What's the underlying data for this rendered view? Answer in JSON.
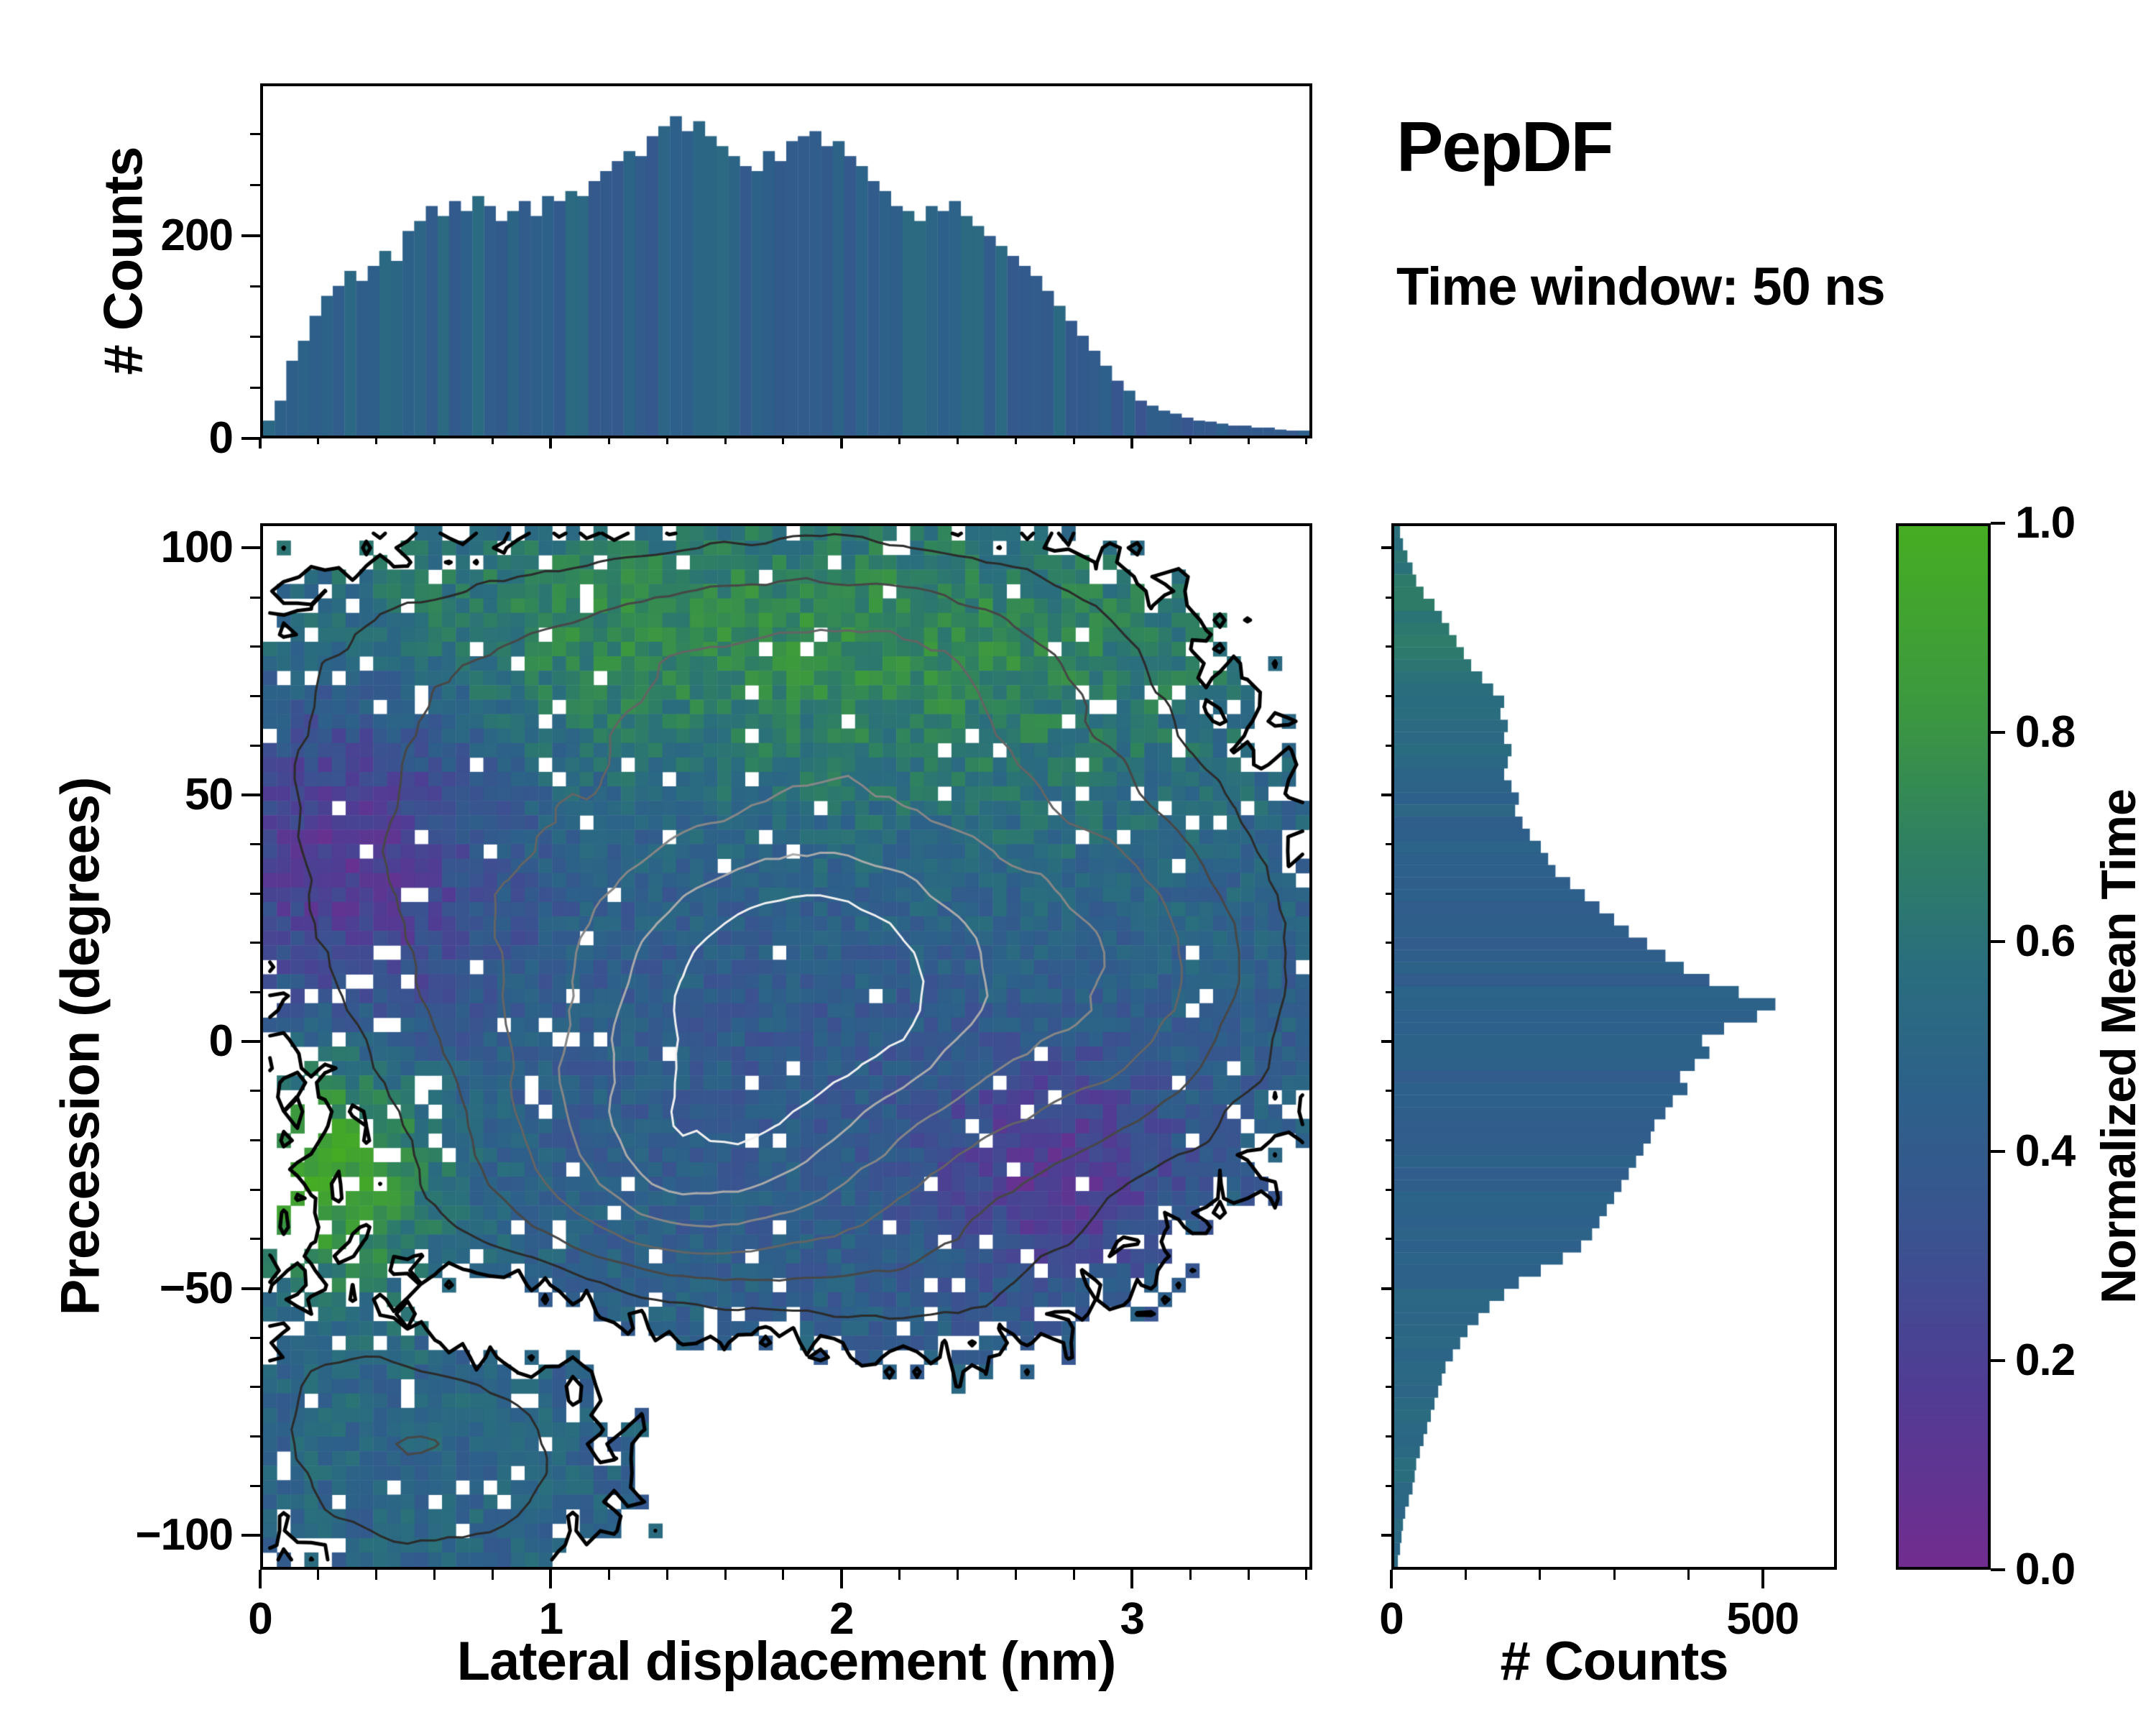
{
  "chart_data": {
    "type": "heatmap",
    "title": "PepDF",
    "annotation": "Time window: 50 ns",
    "main": {
      "xlabel": "Lateral displacement (nm)",
      "ylabel": "Precession (degrees)",
      "xlim": [
        0,
        3.62
      ],
      "ylim": [
        -107,
        105
      ],
      "xticks": [
        {
          "v": 0,
          "label": "0"
        },
        {
          "v": 1,
          "label": "1"
        },
        {
          "v": 2,
          "label": "2"
        },
        {
          "v": 3,
          "label": "3"
        }
      ],
      "xminor_step": 0.2,
      "yticks": [
        {
          "v": 100,
          "label": "100"
        },
        {
          "v": 50,
          "label": "50"
        },
        {
          "v": 0,
          "label": "0"
        },
        {
          "v": -50,
          "label": "−50"
        },
        {
          "v": -100,
          "label": "−100"
        }
      ],
      "yminor_step": 10
    },
    "top_hist": {
      "type": "bar",
      "ylabel": "# Counts",
      "ylim": [
        0,
        350
      ],
      "yticks": [
        {
          "v": 0,
          "label": "0"
        },
        {
          "v": 200,
          "label": "200"
        }
      ],
      "yminor_step": 50,
      "color_base": 0.46,
      "color_noise": 0.09,
      "values": [
        15,
        35,
        75,
        95,
        120,
        140,
        150,
        165,
        155,
        170,
        185,
        175,
        205,
        215,
        230,
        220,
        235,
        225,
        240,
        230,
        215,
        225,
        235,
        220,
        240,
        235,
        245,
        240,
        255,
        265,
        275,
        285,
        280,
        300,
        310,
        320,
        305,
        315,
        300,
        290,
        280,
        270,
        265,
        285,
        275,
        295,
        300,
        305,
        290,
        295,
        280,
        270,
        255,
        245,
        230,
        225,
        215,
        230,
        225,
        235,
        220,
        210,
        200,
        190,
        180,
        170,
        160,
        145,
        130,
        115,
        100,
        85,
        70,
        55,
        45,
        35,
        30,
        25,
        22,
        18,
        15,
        14,
        12,
        10,
        10,
        8,
        8,
        6,
        5,
        5
      ]
    },
    "right_hist": {
      "type": "bar",
      "orientation": "horizontal",
      "xlabel": "# Counts",
      "xlim": [
        0,
        600
      ],
      "xticks": [
        {
          "v": 0,
          "label": "0"
        },
        {
          "v": 500,
          "label": "500"
        }
      ],
      "xminor_step": 100,
      "y_top": 105,
      "y_bottom": -107,
      "color_base": 0.44,
      "color_noise": 0.04,
      "color_profile": [
        {
          "cy": 85,
          "sy": 28,
          "a": 0.2
        },
        {
          "cy": -85,
          "sy": 35,
          "a": 0.1
        }
      ],
      "values": [
        8,
        12,
        18,
        25,
        30,
        40,
        55,
        65,
        75,
        85,
        95,
        105,
        120,
        135,
        150,
        145,
        155,
        150,
        160,
        155,
        150,
        160,
        170,
        165,
        175,
        185,
        200,
        210,
        220,
        240,
        260,
        280,
        300,
        320,
        345,
        370,
        395,
        430,
        470,
        520,
        495,
        450,
        420,
        430,
        410,
        390,
        400,
        380,
        370,
        355,
        350,
        340,
        330,
        320,
        310,
        300,
        290,
        280,
        270,
        255,
        230,
        200,
        170,
        150,
        130,
        115,
        100,
        90,
        80,
        70,
        65,
        60,
        55,
        50,
        45,
        40,
        35,
        30,
        28,
        25,
        20,
        15,
        12,
        10,
        8,
        5
      ]
    },
    "heatmap": {
      "grid": [
        76,
        72
      ],
      "seed": 42,
      "threshold": 0.2,
      "occupancy_noise": 0.09,
      "hole_base": 0.13,
      "hole_decay": 1.8,
      "value_base": 0.45,
      "value_noise": 0.11,
      "density_blobs": [
        {
          "cx": 1.75,
          "cy": 8,
          "sx": 0.85,
          "sy": 40,
          "a": 1.0
        },
        {
          "cx": 1.9,
          "cy": 12,
          "sx": 0.35,
          "sy": 16,
          "a": 0.35
        },
        {
          "cx": 1.45,
          "cy": -25,
          "sx": 0.4,
          "sy": 16,
          "a": 0.38
        },
        {
          "cx": 0.45,
          "cy": 45,
          "sx": 0.5,
          "sy": 30,
          "a": 0.25
        },
        {
          "cx": 1.3,
          "cy": 80,
          "sx": 1.0,
          "sy": 20,
          "a": 0.3
        },
        {
          "cx": 2.2,
          "cy": 85,
          "sx": 0.7,
          "sy": 16,
          "a": 0.2
        },
        {
          "cx": 0.55,
          "cy": -80,
          "sx": 0.5,
          "sy": 25,
          "a": 0.5
        },
        {
          "cx": 3.05,
          "cy": 15,
          "sx": 0.45,
          "sy": 28,
          "a": 0.42
        },
        {
          "cx": 2.4,
          "cy": 58,
          "sx": 0.6,
          "sy": 24,
          "a": 0.2
        },
        {
          "cx": 2.3,
          "cy": -55,
          "sx": 0.45,
          "sy": 16,
          "a": 0.16
        },
        {
          "cx": 0.8,
          "cy": -56,
          "sx": 0.28,
          "sy": 9,
          "a": -0.35
        },
        {
          "cx": 1.6,
          "cy": -68,
          "sx": 0.6,
          "sy": 12,
          "a": -0.18
        }
      ],
      "value_regions": [
        {
          "cx": 1.5,
          "cy": 85,
          "sx": 1.6,
          "sy": 20,
          "a": 0.27
        },
        {
          "cx": 0.3,
          "cy": 40,
          "sx": 0.35,
          "sy": 30,
          "a": -0.32
        },
        {
          "cx": 0.22,
          "cy": -25,
          "sx": 0.28,
          "sy": 18,
          "a": 0.5
        },
        {
          "cx": 2.75,
          "cy": -27,
          "sx": 0.3,
          "sy": 16,
          "a": -0.3
        },
        {
          "cx": 1.9,
          "cy": 8,
          "sx": 0.7,
          "sy": 35,
          "a": -0.06
        },
        {
          "cx": 2.4,
          "cy": 55,
          "sx": 0.8,
          "sy": 25,
          "a": 0.12
        },
        {
          "cx": 0.5,
          "cy": -85,
          "sx": 0.6,
          "sy": 28,
          "a": 0.05
        }
      ],
      "contours": {
        "boundary": {
          "level": 0.2,
          "color": "#000000",
          "width": 5
        },
        "inner": {
          "levels": [
            0.34,
            0.5,
            0.66,
            0.82,
            0.98,
            1.14
          ],
          "colors": [
            "#2b2b2b",
            "#474747",
            "#646464",
            "#868686",
            "#aaaaaa",
            "#f0f0f0"
          ],
          "width": 3,
          "noise": 0.04
        }
      }
    },
    "colorbar": {
      "label": "Normalized Mean Time",
      "ticks": [
        {
          "v": 0,
          "label": "0.0"
        },
        {
          "v": 0.2,
          "label": "0.2"
        },
        {
          "v": 0.4,
          "label": "0.4"
        },
        {
          "v": 0.6,
          "label": "0.6"
        },
        {
          "v": 0.8,
          "label": "0.8"
        },
        {
          "v": 1,
          "label": "1.0"
        }
      ],
      "cmap_stops": [
        [
          0.0,
          "#712c8f"
        ],
        [
          0.18,
          "#4f3d94"
        ],
        [
          0.32,
          "#3a5390"
        ],
        [
          0.45,
          "#2d608a"
        ],
        [
          0.58,
          "#2a6e7e"
        ],
        [
          0.7,
          "#2f8160"
        ],
        [
          0.82,
          "#3c9741"
        ],
        [
          1.0,
          "#46ad22"
        ]
      ]
    }
  }
}
